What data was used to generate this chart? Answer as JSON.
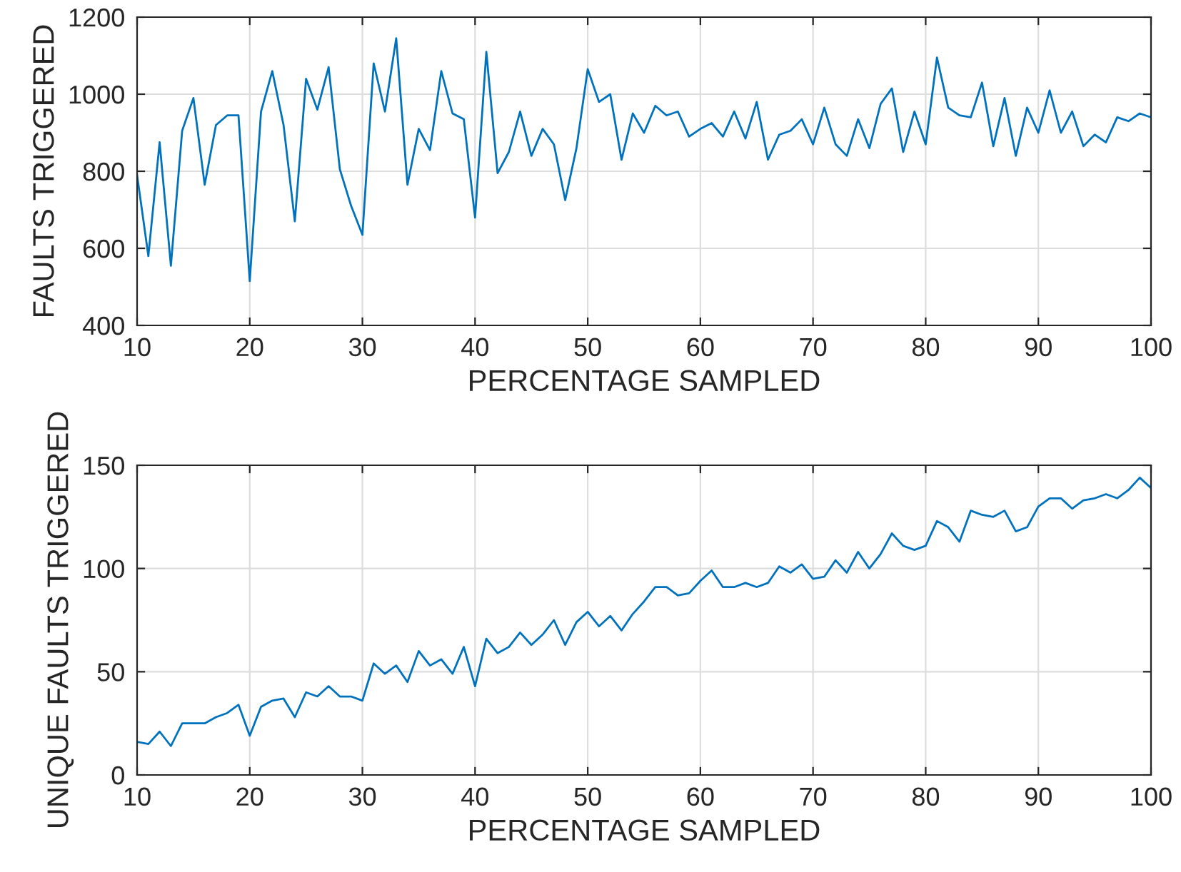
{
  "chart_data": [
    {
      "type": "line",
      "xlabel": "PERCENTAGE SAMPLED",
      "ylabel": "FAULTS TRIGGERED",
      "xlim": [
        10,
        100
      ],
      "ylim": [
        400,
        1200
      ],
      "xticks": [
        10,
        20,
        30,
        40,
        50,
        60,
        70,
        80,
        90,
        100
      ],
      "yticks": [
        400,
        600,
        800,
        1000,
        1200
      ],
      "grid": true,
      "x": [
        10,
        11,
        12,
        13,
        14,
        15,
        16,
        17,
        18,
        19,
        20,
        21,
        22,
        23,
        24,
        25,
        26,
        27,
        28,
        29,
        30,
        31,
        32,
        33,
        34,
        35,
        36,
        37,
        38,
        39,
        40,
        41,
        42,
        43,
        44,
        45,
        46,
        47,
        48,
        49,
        50,
        51,
        52,
        53,
        54,
        55,
        56,
        57,
        58,
        59,
        60,
        61,
        62,
        63,
        64,
        65,
        66,
        67,
        68,
        69,
        70,
        71,
        72,
        73,
        74,
        75,
        76,
        77,
        78,
        79,
        80,
        81,
        82,
        83,
        84,
        85,
        86,
        87,
        88,
        89,
        90,
        91,
        92,
        93,
        94,
        95,
        96,
        97,
        98,
        99,
        100
      ],
      "series": [
        {
          "color": "#0072bd",
          "values": [
            790,
            580,
            875,
            555,
            905,
            990,
            765,
            920,
            945,
            945,
            515,
            955,
            1060,
            920,
            670,
            1040,
            960,
            1070,
            805,
            710,
            635,
            1080,
            955,
            1145,
            765,
            910,
            855,
            1060,
            950,
            935,
            680,
            1110,
            795,
            850,
            955,
            840,
            910,
            870,
            725,
            860,
            1065,
            980,
            1000,
            830,
            950,
            900,
            970,
            945,
            955,
            890,
            910,
            925,
            890,
            955,
            885,
            980,
            830,
            895,
            905,
            935,
            870,
            965,
            870,
            840,
            935,
            860,
            975,
            1015,
            850,
            955,
            870,
            1095,
            965,
            945,
            940,
            1030,
            865,
            990,
            840,
            965,
            900,
            1010,
            900,
            955,
            865,
            895,
            875,
            940,
            930,
            950,
            940
          ]
        }
      ]
    },
    {
      "type": "line",
      "xlabel": "PERCENTAGE SAMPLED",
      "ylabel": "UNIQUE FAULTS TRIGGERED",
      "xlim": [
        10,
        100
      ],
      "ylim": [
        0,
        150
      ],
      "xticks": [
        10,
        20,
        30,
        40,
        50,
        60,
        70,
        80,
        90,
        100
      ],
      "yticks": [
        0,
        50,
        100,
        150
      ],
      "grid": true,
      "x": [
        10,
        11,
        12,
        13,
        14,
        15,
        16,
        17,
        18,
        19,
        20,
        21,
        22,
        23,
        24,
        25,
        26,
        27,
        28,
        29,
        30,
        31,
        32,
        33,
        34,
        35,
        36,
        37,
        38,
        39,
        40,
        41,
        42,
        43,
        44,
        45,
        46,
        47,
        48,
        49,
        50,
        51,
        52,
        53,
        54,
        55,
        56,
        57,
        58,
        59,
        60,
        61,
        62,
        63,
        64,
        65,
        66,
        67,
        68,
        69,
        70,
        71,
        72,
        73,
        74,
        75,
        76,
        77,
        78,
        79,
        80,
        81,
        82,
        83,
        84,
        85,
        86,
        87,
        88,
        89,
        90,
        91,
        92,
        93,
        94,
        95,
        96,
        97,
        98,
        99,
        100
      ],
      "series": [
        {
          "color": "#0072bd",
          "values": [
            16,
            15,
            21,
            14,
            25,
            25,
            25,
            28,
            30,
            34,
            19,
            33,
            36,
            37,
            28,
            40,
            38,
            43,
            38,
            38,
            36,
            54,
            49,
            53,
            45,
            60,
            53,
            56,
            49,
            62,
            43,
            66,
            59,
            62,
            69,
            63,
            68,
            75,
            63,
            74,
            79,
            72,
            77,
            70,
            78,
            84,
            91,
            91,
            87,
            88,
            94,
            99,
            91,
            91,
            93,
            91,
            93,
            101,
            98,
            102,
            95,
            96,
            104,
            98,
            108,
            100,
            107,
            117,
            111,
            109,
            111,
            123,
            120,
            113,
            128,
            126,
            125,
            128,
            118,
            120,
            130,
            134,
            134,
            129,
            133,
            134,
            136,
            134,
            138,
            144,
            139
          ]
        }
      ]
    }
  ]
}
